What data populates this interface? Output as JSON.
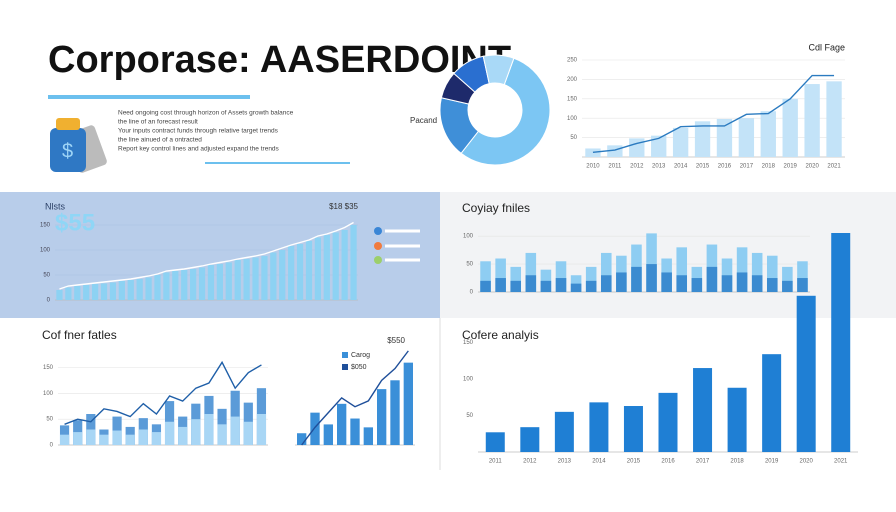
{
  "header": {
    "title": "Corporase:   AASERDOINT",
    "bullets": [
      "Need ongoing cost through horizon of Assets growth balance",
      "the line of an forecast result",
      "Your inputs contract funds through relative target trends",
      "the line ainued of a ontracted",
      "Report key control lines and adjusted expand the trends"
    ]
  },
  "chart_data": [
    {
      "type": "pie",
      "label": "Pacand",
      "values": [
        55,
        18,
        8,
        10,
        9
      ],
      "colors": [
        "#7cc6f3",
        "#3f8fd8",
        "#1e2a6b",
        "#2a6fd0",
        "#a9d9f7"
      ]
    },
    {
      "type": "bar",
      "title": "Cdl Fage",
      "categories": [
        "2010",
        "2011",
        "2012",
        "2013",
        "2014",
        "2015",
        "2016",
        "2017",
        "2018",
        "2019",
        "2020",
        "2021"
      ],
      "ylim": [
        0,
        250
      ],
      "yticks": [
        50,
        100,
        150,
        200,
        250
      ],
      "grid": true,
      "series": [
        {
          "type": "bar",
          "color": "#c3e3f8",
          "values": [
            22,
            30,
            48,
            55,
            75,
            92,
            98,
            100,
            118,
            150,
            188,
            195
          ]
        },
        {
          "type": "line",
          "color": "#2b7bc0",
          "values": [
            12,
            18,
            35,
            48,
            78,
            80,
            80,
            110,
            112,
            150,
            210,
            210
          ]
        }
      ]
    },
    {
      "type": "bar",
      "title": "Nlsts",
      "headline": "$55",
      "note": "$18 $35",
      "ylim": [
        0,
        170
      ],
      "yticks": [
        0,
        50,
        100,
        150
      ],
      "grid": true,
      "series": [
        {
          "type": "bar",
          "color": "#8dd2f3",
          "values": [
            20,
            25,
            28,
            30,
            32,
            33,
            35,
            38,
            40,
            42,
            45,
            50,
            55,
            58,
            60,
            62,
            65,
            70,
            72,
            75,
            80,
            82,
            85,
            88,
            95,
            100,
            108,
            112,
            118,
            125,
            130,
            135,
            140,
            150
          ]
        },
        {
          "type": "line",
          "color": "#ffffff",
          "values": [
            22,
            28,
            30,
            32,
            34,
            36,
            38,
            40,
            42,
            45,
            48,
            52,
            58,
            60,
            62,
            65,
            68,
            72,
            75,
            78,
            82,
            85,
            88,
            92,
            98,
            104,
            110,
            115,
            120,
            128,
            132,
            138,
            145,
            155
          ]
        }
      ]
    },
    {
      "type": "bar",
      "title": "Coyiay fniles",
      "ylim": [
        0,
        120
      ],
      "yticks": [
        0,
        50,
        100
      ],
      "grid": true,
      "series": [
        {
          "type": "bar",
          "color": "#8ecdf2",
          "values": [
            55,
            60,
            45,
            70,
            40,
            55,
            30,
            45,
            70,
            65,
            85,
            105,
            60,
            80,
            45,
            85,
            60,
            80,
            70,
            65,
            45,
            55
          ]
        },
        {
          "type": "bar",
          "color": "#3b8bd0",
          "values": [
            20,
            25,
            20,
            30,
            20,
            25,
            15,
            20,
            30,
            35,
            45,
            50,
            35,
            30,
            25,
            45,
            30,
            35,
            30,
            25,
            20,
            25
          ]
        }
      ]
    },
    {
      "type": "bar",
      "title": "Cof fner fatles",
      "ylim": [
        0,
        180
      ],
      "yticks": [
        0,
        50,
        100,
        150
      ],
      "grid": true,
      "series": [
        {
          "type": "bar",
          "color": "#5b9bd8",
          "values": [
            38,
            48,
            60,
            30,
            55,
            35,
            52,
            40,
            85,
            55,
            80,
            95,
            70,
            105,
            82,
            110
          ]
        },
        {
          "type": "bar",
          "color": "#a8d6f5",
          "values": [
            20,
            25,
            30,
            20,
            28,
            20,
            30,
            25,
            45,
            35,
            50,
            60,
            40,
            55,
            45,
            60
          ]
        },
        {
          "type": "line",
          "color": "#1f5fa8",
          "values": [
            40,
            50,
            45,
            70,
            65,
            55,
            80,
            60,
            95,
            85,
            110,
            120,
            160,
            110,
            140,
            155
          ]
        }
      ]
    },
    {
      "type": "bar",
      "note": "$550",
      "ylim": [
        0,
        170
      ],
      "yticks": [],
      "grid": false,
      "series": [
        {
          "type": "bar",
          "name": "Carog",
          "color": "#3a8fd8",
          "values": [
            20,
            55,
            35,
            70,
            45,
            30,
            95,
            110,
            140
          ]
        },
        {
          "type": "line",
          "name": "$050",
          "color": "#1f4f9a",
          "values": [
            0,
            30,
            55,
            80,
            65,
            75,
            110,
            130,
            160
          ]
        }
      ]
    },
    {
      "type": "bar",
      "title": "Cofere analyis",
      "categories": [
        "2011",
        "2012",
        "2013",
        "2014",
        "2015",
        "2016",
        "2017",
        "2018",
        "2019",
        "2020",
        "2021"
      ],
      "ylim": [
        0,
        300
      ],
      "yticks": [
        50,
        100,
        150
      ],
      "grid": false,
      "series": [
        {
          "type": "bar",
          "color": "#1f7fd4",
          "values": [
            27,
            34,
            55,
            68,
            63,
            81,
            115,
            88,
            134,
            214,
            300
          ]
        }
      ]
    }
  ]
}
